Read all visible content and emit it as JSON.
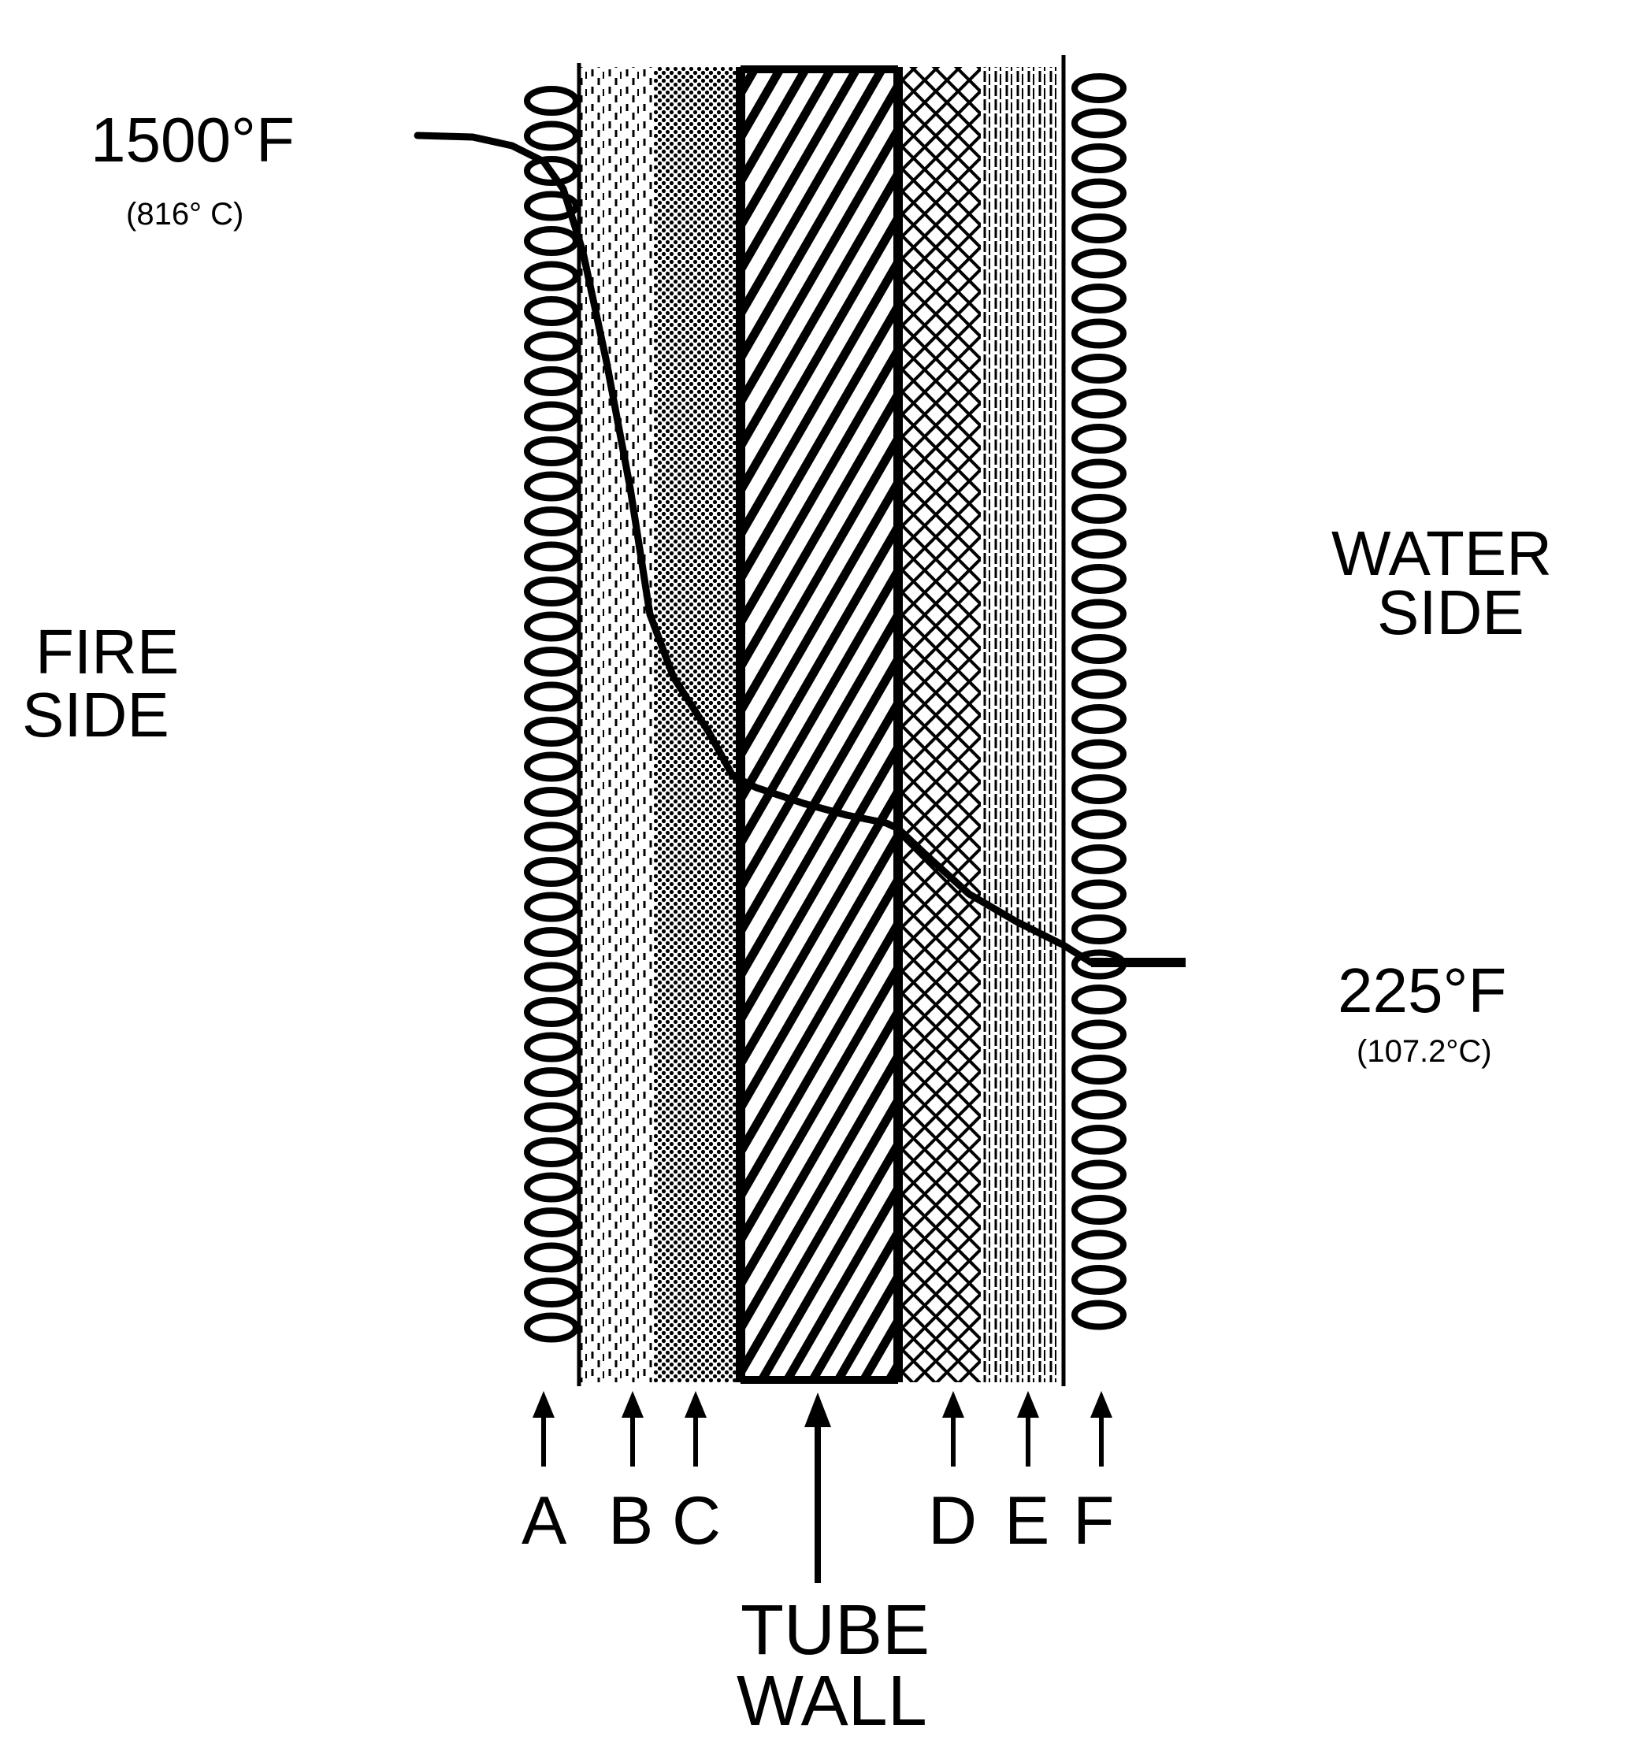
{
  "title": "",
  "labels": {
    "fire_side_line1": "FIRE",
    "fire_side_line2": "SIDE",
    "water_side_line1": "WATER",
    "water_side_line2": "SIDE",
    "hot_temp_f": "1500°F",
    "hot_temp_c": "(816° C)",
    "cold_temp_f": "225°F",
    "cold_temp_c": "(107.2°C)",
    "tube_wall_line1": "TUBE",
    "tube_wall_line2": "WALL"
  },
  "layers": [
    {
      "letter": "A",
      "name": "fire-side-film"
    },
    {
      "letter": "B",
      "name": "layer-b"
    },
    {
      "letter": "C",
      "name": "layer-c"
    },
    {
      "letter": "D",
      "name": "layer-d"
    },
    {
      "letter": "E",
      "name": "layer-e"
    },
    {
      "letter": "F",
      "name": "water-side-film"
    }
  ],
  "colors": {
    "ink": "#000000",
    "paper": "#ffffff"
  }
}
